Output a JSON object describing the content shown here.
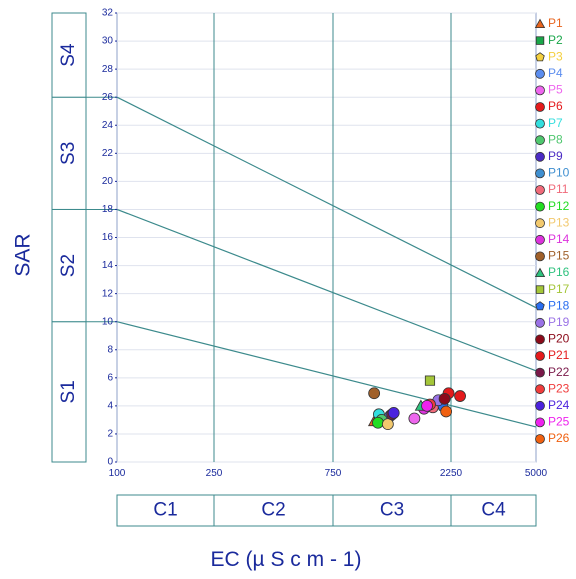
{
  "chart_data": {
    "type": "scatter",
    "title": "",
    "xlabel": "EC (µ S c m - 1)",
    "ylabel": "SAR",
    "x_ticks": [
      "100",
      "250",
      "750",
      "2250",
      "5000"
    ],
    "y_ticks": [
      "0",
      "2",
      "4",
      "6",
      "8",
      "10",
      "12",
      "14",
      "16",
      "18",
      "20",
      "22",
      "24",
      "26",
      "28",
      "30",
      "32"
    ],
    "ylim": [
      0,
      32
    ],
    "x_scale": "piecewise",
    "grid": true,
    "legend_position": "right",
    "salinity_classes": [
      "C1",
      "C2",
      "C3",
      "C4"
    ],
    "sodium_classes": [
      "S1",
      "S2",
      "S3",
      "S4"
    ],
    "boundary_lines": [
      {
        "from": [
          100,
          10
        ],
        "to": [
          5000,
          2.5
        ]
      },
      {
        "from": [
          100,
          18
        ],
        "to": [
          5000,
          6.5
        ]
      },
      {
        "from": [
          100,
          26
        ],
        "to": [
          5000,
          11
        ]
      }
    ],
    "series": [
      {
        "name": "P1",
        "marker": "triangle",
        "color": "#e8641e",
        "x": 1100,
        "y": 2.9
      },
      {
        "name": "P2",
        "marker": "square",
        "color": "#1aa64a",
        "x": 1150,
        "y": 2.9
      },
      {
        "name": "P3",
        "marker": "pentagon",
        "color": "#f4d03f",
        "x": 1240,
        "y": 2.8
      },
      {
        "name": "P4",
        "marker": "circle",
        "color": "#5b8def",
        "x": 1280,
        "y": 3.3
      },
      {
        "name": "P5",
        "marker": "circle",
        "color": "#ee66ee",
        "x": 1600,
        "y": 3.1
      },
      {
        "name": "P6",
        "marker": "circle",
        "color": "#e41a1c",
        "x": 2200,
        "y": 4.9
      },
      {
        "name": "P7",
        "marker": "circle",
        "color": "#33dede",
        "x": 1150,
        "y": 3.4
      },
      {
        "name": "P8",
        "marker": "circle",
        "color": "#4fc76f",
        "x": 1180,
        "y": 3.0
      },
      {
        "name": "P9",
        "marker": "circle",
        "color": "#4b2bc4",
        "x": 2050,
        "y": 4.2
      },
      {
        "name": "P10",
        "marker": "circle",
        "color": "#3f8fd0",
        "x": 2000,
        "y": 4.3
      },
      {
        "name": "P11",
        "marker": "circle",
        "color": "#f06a7a",
        "x": 1900,
        "y": 3.9
      },
      {
        "name": "P12",
        "marker": "circle",
        "color": "#22dd22",
        "x": 1140,
        "y": 2.8
      },
      {
        "name": "P13",
        "marker": "circle",
        "color": "#f2c96e",
        "x": 1250,
        "y": 2.7
      },
      {
        "name": "P14",
        "marker": "circle",
        "color": "#dd33dd",
        "x": 1750,
        "y": 3.8
      },
      {
        "name": "P15",
        "marker": "circle",
        "color": "#a0602a",
        "x": 1100,
        "y": 4.9
      },
      {
        "name": "P16",
        "marker": "triangle",
        "color": "#2ec27e",
        "x": 1700,
        "y": 4.0
      },
      {
        "name": "P17",
        "marker": "square",
        "color": "#a4c639",
        "x": 1850,
        "y": 5.8
      },
      {
        "name": "P18",
        "marker": "pentagon",
        "color": "#2a6ef0",
        "x": 2080,
        "y": 4.0
      },
      {
        "name": "P19",
        "marker": "circle",
        "color": "#9a72e6",
        "x": 2000,
        "y": 4.4
      },
      {
        "name": "P20",
        "marker": "circle",
        "color": "#8b0a1a",
        "x": 2120,
        "y": 4.5
      },
      {
        "name": "P21",
        "marker": "circle",
        "color": "#e41a1c",
        "x": 2450,
        "y": 4.7
      },
      {
        "name": "P22",
        "marker": "circle",
        "color": "#7a1a4a",
        "x": 1300,
        "y": 3.4
      },
      {
        "name": "P23",
        "marker": "circle",
        "color": "#f03c3c",
        "x": 1850,
        "y": 4.1
      },
      {
        "name": "P24",
        "marker": "circle",
        "color": "#4b22dd",
        "x": 1320,
        "y": 3.5
      },
      {
        "name": "P25",
        "marker": "circle",
        "color": "#ee22ee",
        "x": 1800,
        "y": 4.0
      },
      {
        "name": "P26",
        "marker": "circle",
        "color": "#f06010",
        "x": 2150,
        "y": 3.6
      }
    ]
  }
}
